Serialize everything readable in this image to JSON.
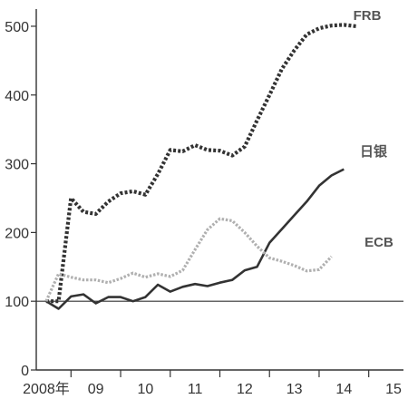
{
  "chart_data": {
    "type": "line",
    "x": [
      2008.0,
      2008.25,
      2008.5,
      2008.75,
      2009.0,
      2009.25,
      2009.5,
      2009.75,
      2010.0,
      2010.25,
      2010.5,
      2010.75,
      2011.0,
      2011.25,
      2011.5,
      2011.75,
      2012.0,
      2012.25,
      2012.5,
      2012.75,
      2013.0,
      2013.25,
      2013.5,
      2013.75,
      2014.0,
      2014.25,
      2014.5,
      2014.75,
      2015.0
    ],
    "x_tick_labels": [
      {
        "x": 2008.0,
        "label": "2008年"
      },
      {
        "x": 2009.0,
        "label": "09"
      },
      {
        "x": 2010.0,
        "label": "10"
      },
      {
        "x": 2011.0,
        "label": "11"
      },
      {
        "x": 2012.0,
        "label": "12"
      },
      {
        "x": 2013.0,
        "label": "13"
      },
      {
        "x": 2014.0,
        "label": "14"
      },
      {
        "x": 2015.0,
        "label": "15"
      }
    ],
    "yticks": [
      0,
      100,
      200,
      300,
      400,
      500
    ],
    "ylim": [
      0,
      525
    ],
    "xlim": [
      2007.8,
      2015.2
    ],
    "reference_line": 100,
    "series": [
      {
        "name": "FRB",
        "style": "dotted-bold",
        "color": "#333333",
        "values": [
          100,
          100,
          250,
          230,
          227,
          245,
          257,
          260,
          255,
          285,
          320,
          318,
          327,
          320,
          319,
          312,
          325,
          363,
          400,
          438,
          465,
          488,
          497,
          501,
          502,
          500,
          null,
          null,
          null
        ]
      },
      {
        "name": "日银",
        "style": "solid",
        "color": "#333333",
        "values": [
          100,
          89,
          107,
          110,
          97,
          106,
          106,
          100,
          106,
          124,
          114,
          121,
          125,
          122,
          127,
          131,
          145,
          150,
          185,
          205,
          225,
          245,
          268,
          283,
          292,
          null,
          null,
          null,
          null
        ]
      },
      {
        "name": "ECB",
        "style": "dotted-light",
        "color": "#b0b0b0",
        "values": [
          100,
          140,
          135,
          131,
          131,
          127,
          133,
          141,
          135,
          140,
          136,
          145,
          175,
          204,
          220,
          217,
          200,
          180,
          163,
          158,
          152,
          144,
          146,
          165,
          null,
          null,
          null,
          null,
          null
        ]
      }
    ]
  }
}
